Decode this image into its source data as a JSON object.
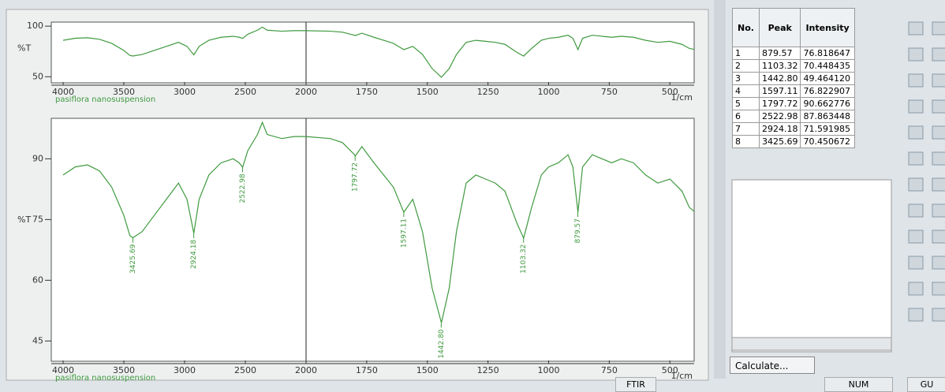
{
  "chart_data": [
    {
      "type": "line",
      "legend_text": "pasiflora nanosuspension",
      "xlabel": "1/cm",
      "ylabel": "%T",
      "xlim": [
        4000,
        400
      ],
      "x_split": 2000,
      "ylim": [
        44,
        104
      ],
      "yticks": [
        50,
        100
      ],
      "xticks": [
        4000,
        3500,
        3000,
        2500,
        2000,
        1750,
        1500,
        1250,
        1000,
        750,
        500
      ],
      "x": [
        4000,
        3900,
        3800,
        3700,
        3600,
        3500,
        3450,
        3425,
        3350,
        3250,
        3150,
        3050,
        2980,
        2924,
        2880,
        2800,
        2700,
        2600,
        2550,
        2522,
        2480,
        2400,
        2360,
        2320,
        2200,
        2100,
        2000,
        1900,
        1850,
        1800,
        1797,
        1770,
        1720,
        1680,
        1640,
        1597,
        1560,
        1520,
        1480,
        1442,
        1410,
        1380,
        1340,
        1300,
        1260,
        1220,
        1180,
        1130,
        1103,
        1070,
        1030,
        1000,
        960,
        920,
        900,
        879,
        860,
        820,
        780,
        740,
        700,
        650,
        600,
        550,
        500,
        450,
        420,
        400
      ],
      "series": [
        {
          "color": "#3f9a3f",
          "values": [
            86,
            88,
            88.5,
            87,
            83,
            76,
            71,
            70.5,
            72,
            76,
            80,
            84,
            80,
            71.6,
            80,
            86,
            89,
            90,
            89,
            87.9,
            92,
            96,
            99,
            96,
            95,
            95.5,
            95.5,
            95,
            94,
            91,
            90.7,
            93,
            89,
            86,
            83,
            76.8,
            80,
            72,
            58,
            49.5,
            58,
            72,
            84,
            86,
            85,
            84,
            82,
            74,
            70.4,
            78,
            86,
            88,
            89,
            91,
            88,
            76.8,
            88,
            91,
            90,
            89,
            90,
            89,
            86,
            84,
            85,
            82,
            78,
            77
          ]
        }
      ]
    },
    {
      "type": "line",
      "legend_text": "pasiflora nanosuspension",
      "xlabel": "1/cm",
      "ylabel": "%T",
      "xlim": [
        4000,
        400
      ],
      "x_split": 2000,
      "ylim": [
        40,
        100
      ],
      "yticks": [
        45,
        60,
        75,
        90
      ],
      "xticks": [
        4000,
        3500,
        3000,
        2500,
        2000,
        1750,
        1500,
        1250,
        1000,
        750,
        500
      ],
      "x": [
        4000,
        3900,
        3800,
        3700,
        3600,
        3500,
        3450,
        3425,
        3350,
        3250,
        3150,
        3050,
        2980,
        2924,
        2880,
        2800,
        2700,
        2600,
        2550,
        2522,
        2480,
        2400,
        2360,
        2320,
        2200,
        2100,
        2000,
        1900,
        1850,
        1800,
        1797,
        1770,
        1720,
        1680,
        1640,
        1597,
        1560,
        1520,
        1480,
        1442,
        1410,
        1380,
        1340,
        1300,
        1260,
        1220,
        1180,
        1130,
        1103,
        1070,
        1030,
        1000,
        960,
        920,
        900,
        879,
        860,
        820,
        780,
        740,
        700,
        650,
        600,
        550,
        500,
        450,
        420,
        400
      ],
      "series": [
        {
          "color": "#3f9a3f",
          "values": [
            86,
            88,
            88.5,
            87,
            83,
            76,
            71,
            70.5,
            72,
            76,
            80,
            84,
            80,
            71.6,
            80,
            86,
            89,
            90,
            89,
            87.9,
            92,
            96,
            99,
            96,
            95,
            95.5,
            95.5,
            95,
            94,
            91,
            90.7,
            93,
            89,
            86,
            83,
            76.8,
            80,
            72,
            58,
            49.5,
            58,
            72,
            84,
            86,
            85,
            84,
            82,
            74,
            70.4,
            78,
            86,
            88,
            89,
            91,
            88,
            76.8,
            88,
            91,
            90,
            89,
            90,
            89,
            86,
            84,
            85,
            82,
            78,
            77
          ]
        }
      ],
      "annotations": [
        {
          "x": 3425.69,
          "y": 70.450672,
          "label": "3425.69"
        },
        {
          "x": 2924.18,
          "y": 71.591985,
          "label": "2924.18"
        },
        {
          "x": 2522.98,
          "y": 87.863448,
          "label": "2522.98"
        },
        {
          "x": 1797.72,
          "y": 90.662776,
          "label": "1797.72"
        },
        {
          "x": 1597.11,
          "y": 76.822907,
          "label": "1597.11"
        },
        {
          "x": 1442.8,
          "y": 49.46412,
          "label": "1442.80"
        },
        {
          "x": 1103.32,
          "y": 70.448435,
          "label": "1103.32"
        },
        {
          "x": 879.57,
          "y": 76.818647,
          "label": "879.57"
        }
      ]
    }
  ],
  "table": {
    "header": [
      "No.",
      "Peak",
      "Intensity"
    ],
    "rows": [
      [
        "1",
        "879.57",
        "76.818647"
      ],
      [
        "2",
        "1103.32",
        "70.448435"
      ],
      [
        "3",
        "1442.80",
        "49.464120"
      ],
      [
        "4",
        "1597.11",
        "76.822907"
      ],
      [
        "5",
        "1797.72",
        "90.662776"
      ],
      [
        "6",
        "2522.98",
        "87.863448"
      ],
      [
        "7",
        "2924.18",
        "71.591985"
      ],
      [
        "8",
        "3425.69",
        "70.450672"
      ]
    ]
  },
  "buttons": {
    "calculate": "Calculate..."
  },
  "status": {
    "mode": "FTIR",
    "num": "NUM",
    "extra": "GU"
  }
}
